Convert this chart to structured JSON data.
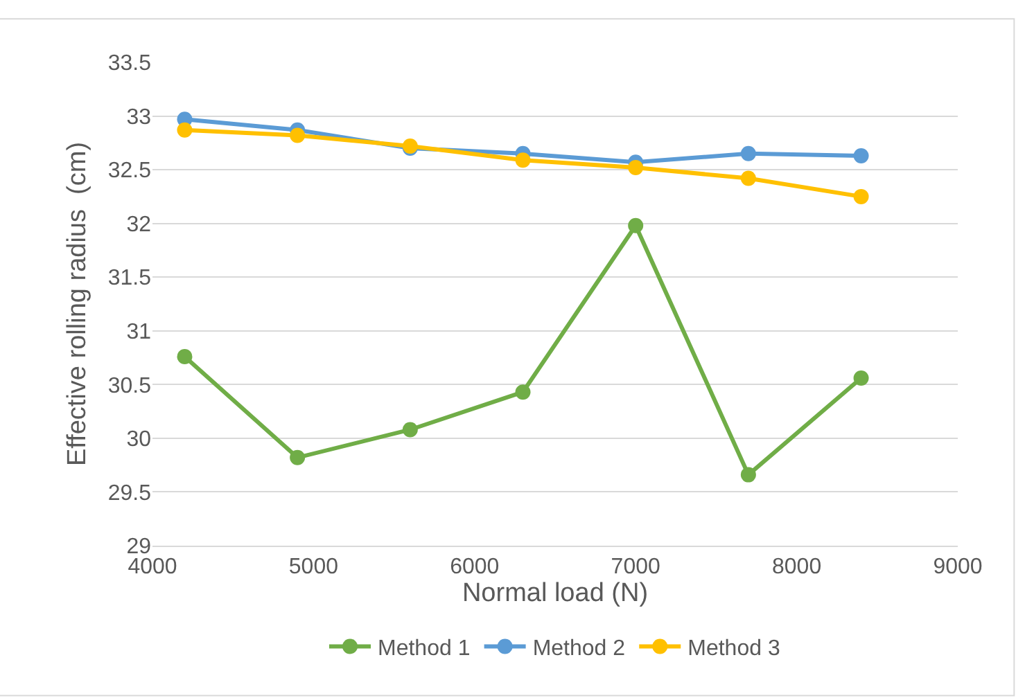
{
  "chart_data": {
    "type": "line",
    "xlabel": "Normal load (N)",
    "ylabel": "Effective rolling radius  (cm)",
    "x": [
      4200,
      4900,
      5600,
      6300,
      7000,
      7700,
      8400
    ],
    "series": [
      {
        "name": "Method 1",
        "color": "#70ad47",
        "values": [
          30.76,
          29.82,
          30.08,
          30.43,
          31.98,
          29.66,
          30.56
        ]
      },
      {
        "name": "Method 2",
        "color": "#5b9bd5",
        "values": [
          32.97,
          32.87,
          32.7,
          32.65,
          32.57,
          32.65,
          32.63
        ]
      },
      {
        "name": "Method 3",
        "color": "#ffc000",
        "values": [
          32.87,
          32.82,
          32.72,
          32.59,
          32.52,
          32.42,
          32.25
        ]
      }
    ],
    "xlim": [
      4000,
      9000
    ],
    "xticks": [
      4000,
      5000,
      6000,
      7000,
      8000,
      9000
    ],
    "ylim": [
      29,
      33.5
    ],
    "yticks": [
      29,
      29.5,
      30,
      30.5,
      31,
      31.5,
      32,
      32.5,
      33,
      33.5
    ],
    "grid": "y",
    "legend": "bottom",
    "marker": "circle",
    "line_style": "solid"
  }
}
